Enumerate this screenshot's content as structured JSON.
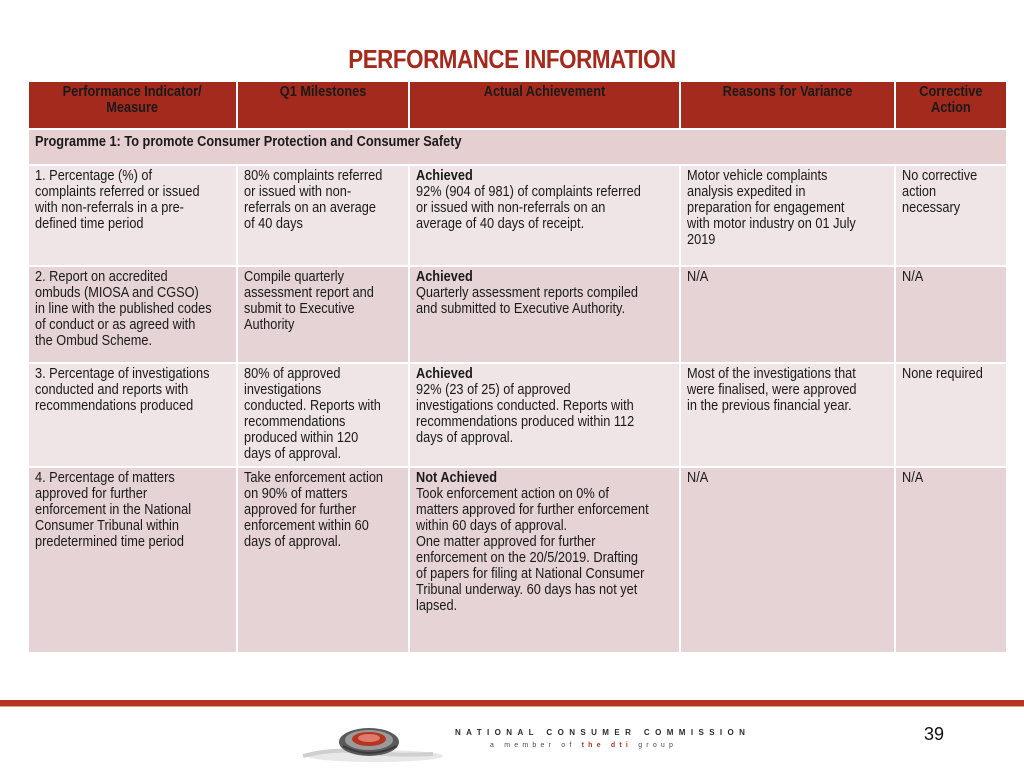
{
  "title": "PERFORMANCE INFORMATION",
  "headers": {
    "indicator": "Performance Indicator/\nMeasure",
    "milestones": "Q1 Milestones",
    "achievement": "Actual Achievement",
    "variance": "Reasons for Variance",
    "corrective": "Corrective\nAction"
  },
  "programme": "Programme 1: To promote Consumer Protection and Consumer Safety",
  "rows": [
    {
      "indicator": "1. Percentage (%) of\ncomplaints referred or issued\nwith non-referrals  in a pre-\ndefined time period",
      "milestone": "80% complaints referred\nor issued with non-\nreferrals  on an average\nof 40 days",
      "status": "Achieved",
      "achievement": "92% (904 of 981) of complaints referred\nor issued with non-referrals on an\naverage of 40 days of receipt.",
      "variance": "Motor vehicle complaints\nanalysis expedited in\npreparation for engagement\nwith motor industry on 01 July\n2019",
      "corrective": "No corrective\naction\nnecessary"
    },
    {
      "indicator": "2. Report on accredited\nombuds (MIOSA and CGSO)\nin line with the published codes\nof conduct or as agreed with\nthe Ombud Scheme.",
      "milestone": "Compile quarterly\nassessment report and\nsubmit to Executive\nAuthority",
      "status": "Achieved",
      "achievement": "Quarterly assessment reports compiled\nand submitted to Executive Authority.",
      "variance": "N/A",
      "corrective": "N/A"
    },
    {
      "indicator": "3. Percentage of investigations\nconducted and reports with\nrecommendations produced",
      "milestone": "80% of approved\ninvestigations\nconducted. Reports with\nrecommendations\nproduced within 120\ndays of approval.",
      "status": "Achieved",
      "achievement": "92% (23 of 25) of approved\ninvestigations conducted. Reports with\nrecommendations produced within 112\ndays of approval.",
      "variance": "Most of the investigations that\nwere finalised, were approved\nin the previous financial year.",
      "corrective": "None required"
    },
    {
      "indicator": "4. Percentage of matters\napproved for further\nenforcement in the National\nConsumer Tribunal within\npredetermined time period",
      "milestone": "Take enforcement action\non 90% of matters\napproved for further\nenforcement within 60\ndays of approval.",
      "status": "Not Achieved",
      "achievement": "Took enforcement action on 0% of\nmatters approved for further enforcement\nwithin 60 days of approval.\nOne matter approved for further\nenforcement on the 20/5/2019. Drafting\nof papers for filing at National Consumer\nTribunal underway. 60 days has not yet\nlapsed.",
      "variance": "N/A",
      "corrective": "N/A"
    }
  ],
  "footer": {
    "org_name": "NATIONAL CONSUMER COMMISSION",
    "tagline_prefix": "a member of ",
    "tagline_accent": "the dti",
    "tagline_suffix": " group",
    "page_number": "39"
  },
  "colors": {
    "accent": "#a32a1c",
    "row_light": "#efe5e6",
    "row_dark": "#e5d3d5",
    "programme_row": "#e6cfd0"
  }
}
